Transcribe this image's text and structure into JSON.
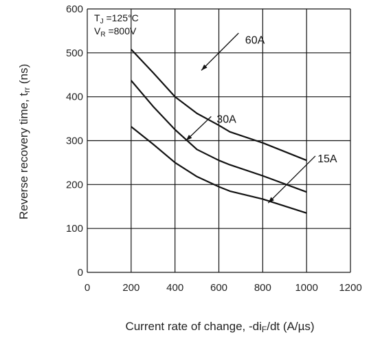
{
  "chart_data": {
    "type": "line",
    "xlabel_parts": [
      "Current rate of change, -di",
      "F",
      "/dt (A/µs)"
    ],
    "ylabel_parts": [
      "Reverse recovery time, t",
      "rr",
      " (ns)"
    ],
    "xlim": [
      0,
      1200
    ],
    "ylim": [
      0,
      600
    ],
    "xticks": [
      "0",
      "200",
      "400",
      "600",
      "800",
      "1000",
      "1200"
    ],
    "yticks": [
      "0",
      "100",
      "200",
      "300",
      "400",
      "500",
      "600"
    ],
    "grid": true,
    "conditions": {
      "line1": {
        "main": "T",
        "sub": "J",
        "rest": " =125°C"
      },
      "line2": {
        "main": "V",
        "sub": "R",
        "rest": " =800V"
      }
    },
    "series": [
      {
        "name": "60A",
        "x": [
          200,
          300,
          400,
          500,
          600,
          650,
          800,
          1000
        ],
        "y": [
          508,
          455,
          400,
          362,
          335,
          320,
          295,
          255
        ]
      },
      {
        "name": "30A",
        "x": [
          200,
          300,
          400,
          500,
          600,
          650,
          800,
          1000
        ],
        "y": [
          437,
          378,
          325,
          280,
          255,
          245,
          220,
          183
        ]
      },
      {
        "name": "15A",
        "x": [
          200,
          300,
          400,
          500,
          600,
          650,
          800,
          1000
        ],
        "y": [
          332,
          292,
          250,
          218,
          195,
          185,
          167,
          135
        ]
      }
    ]
  }
}
